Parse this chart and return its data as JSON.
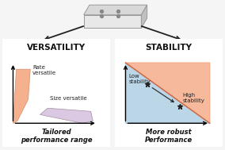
{
  "bg_color": "#f5f5f5",
  "box_color": "#ffffff",
  "box_edge": "#444444",
  "title_left": "VERSATILITY",
  "title_right": "STABILITY",
  "caption_left": "Tailored\nperformance range",
  "caption_right": "More robust\nPerformance",
  "label_rate": "Rate\nversatile",
  "label_size": "Size versatile",
  "label_low": "Low\nstability",
  "label_high": "High\nstability",
  "salmon_color": "#F4A882",
  "lavender_color": "#D8C4E0",
  "blue_color": "#AACCE0",
  "arrow_color": "#222222",
  "chip_top_color": "#d8d8d8",
  "chip_side_color": "#c0c0c0",
  "chip_face_color": "#e8e8e8",
  "dot_color": "#888888"
}
